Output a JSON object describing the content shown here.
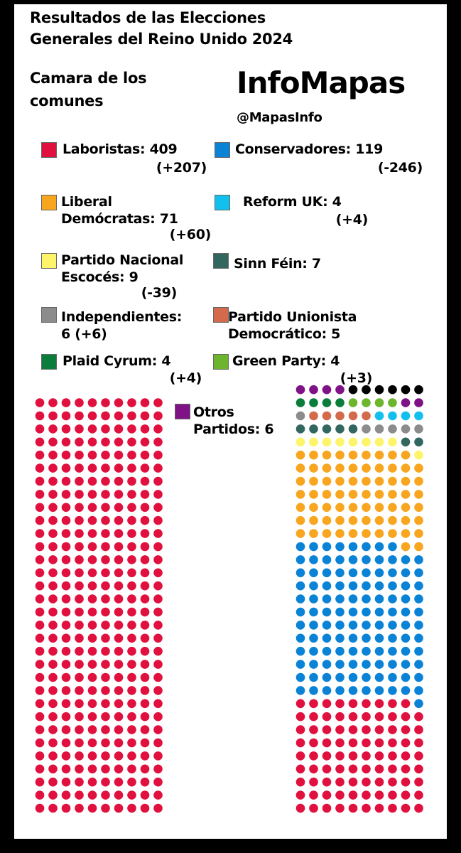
{
  "header": {
    "title_line1": "Resultados de las Elecciones",
    "title_line2": "Generales del Reino Unido 2024",
    "subtitle_line1": "Camara de los",
    "subtitle_line2": "comunes",
    "brand": "InfoMapas",
    "handle": "@MapasInfo"
  },
  "legend": [
    {
      "party": "Laboristas",
      "lines": [
        "Laboristas: 409"
      ],
      "change": "(+207)",
      "color": "#e0103f"
    },
    {
      "party": "Conservadores",
      "lines": [
        "Conservadores: 119"
      ],
      "change": "(-246)",
      "color": "#0a83d6"
    },
    {
      "party": "Liberal Demócratas",
      "lines": [
        "Liberal",
        "Demócratas: 71"
      ],
      "change": "(+60)",
      "color": "#f8a51f"
    },
    {
      "party": "Reform UK",
      "lines": [
        "Reform UK: 4"
      ],
      "change": "(+4)",
      "color": "#12c0ee"
    },
    {
      "party": "Partido Nacional Escocés",
      "lines": [
        "Partido Nacional",
        "Escocés: 9"
      ],
      "change": "(-39)",
      "color": "#fdf46a"
    },
    {
      "party": "Sinn Féin",
      "lines": [
        "Sinn Féin: 7"
      ],
      "change": "",
      "color": "#326760"
    },
    {
      "party": "Independientes",
      "lines": [
        "Independientes:",
        "6 (+6)"
      ],
      "change": "",
      "color": "#8c8c8c"
    },
    {
      "party": "Partido Unionista Democrático",
      "lines": [
        "Partido Unionista",
        "Democrático: 5"
      ],
      "change": "",
      "color": "#d46a4c"
    },
    {
      "party": "Plaid Cyrum",
      "lines": [
        "Plaid Cyrum: 4"
      ],
      "change": "(+4)",
      "color": "#0a7d3c"
    },
    {
      "party": "Green Party",
      "lines": [
        "Green Party: 4"
      ],
      "change": "(+3)",
      "color": "#6cb52d"
    },
    {
      "party": "Otros Partidos",
      "lines": [
        "Otros",
        "Partidos: 6"
      ],
      "change": "",
      "color": "#7e1286"
    }
  ],
  "chart_data": {
    "type": "parliament-dot",
    "title": "Resultados de las Elecciones Generales del Reino Unido 2024",
    "subtitle": "Camara de los comunes",
    "total_seats": 650,
    "series": [
      {
        "name": "Laboristas",
        "seats": 409,
        "change": "+207",
        "color": "#e0103f"
      },
      {
        "name": "Conservadores",
        "seats": 119,
        "change": "-246",
        "color": "#0a83d6"
      },
      {
        "name": "Liberal Demócratas",
        "seats": 71,
        "change": "+60",
        "color": "#f8a51f"
      },
      {
        "name": "Reform UK",
        "seats": 4,
        "change": "+4",
        "color": "#12c0ee"
      },
      {
        "name": "Partido Nacional Escocés",
        "seats": 9,
        "change": "-39",
        "color": "#fdf46a"
      },
      {
        "name": "Sinn Féin",
        "seats": 7,
        "change": "",
        "color": "#326760"
      },
      {
        "name": "Independientes",
        "seats": 6,
        "change": "+6",
        "color": "#8c8c8c"
      },
      {
        "name": "Partido Unionista Democrático",
        "seats": 5,
        "change": "",
        "color": "#d46a4c"
      },
      {
        "name": "Plaid Cyrum",
        "seats": 4,
        "change": "+4",
        "color": "#0a7d3c"
      },
      {
        "name": "Green Party",
        "seats": 4,
        "change": "+3",
        "color": "#6cb52d"
      },
      {
        "name": "Otros Partidos",
        "seats": 6,
        "change": "",
        "color": "#7e1286"
      }
    ],
    "other_seat_color": "#000000",
    "left_block": [
      "Laboristas"
    ],
    "right_block_order": [
      "Laboristas",
      "Conservadores",
      "Liberal Demócratas",
      "Partido Nacional Escocés",
      "Sinn Féin",
      "Independientes",
      "Partido Unionista Democrático",
      "Reform UK",
      "Plaid Cyrum",
      "Green Party",
      "Otros Partidos"
    ]
  }
}
